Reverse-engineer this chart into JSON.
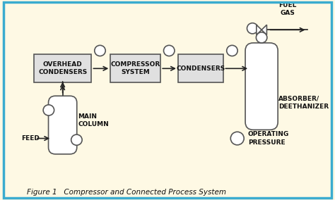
{
  "bg_color": "#fef9e4",
  "border_color": "#3aaccf",
  "box_edge": "#555555",
  "box_fc": "#e0e0e0",
  "line_color": "#222222",
  "title": "Figure 1   Compressor and Connected Process System",
  "labels": {
    "overhead": "OVERHEAD\nCONDENSERS",
    "compressor": "COMPRESSOR\nSYSTEM",
    "condensers": "CONDENSERS",
    "main_column": "MAIN\nCOLUMN",
    "absorber": "ABSORBER/\nDEETHANIZER",
    "fuel_gas": "FUEL\nGAS",
    "feed": "FEED",
    "op_pressure": "OPERATING\nPRESSURE"
  },
  "font_size": 6.5,
  "title_font_size": 7.5
}
